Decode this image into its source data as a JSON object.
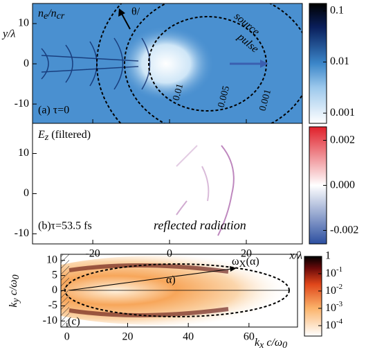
{
  "figure": {
    "x_axis": {
      "label": "x/λ",
      "lim": [
        -35.7,
        34.6
      ],
      "ticks": [
        -20,
        0,
        20
      ]
    },
    "panel_a": {
      "tag": "(a) τ=0",
      "quantity": [
        "n",
        "e",
        "/n",
        "cr"
      ],
      "ylabel": "y/λ",
      "ylim": [
        -14.8,
        15
      ],
      "yticks": [
        10,
        0,
        -10
      ],
      "contours": [
        "0.01",
        "0.005",
        "0.001"
      ],
      "annotations": [
        "source",
        "pulse",
        "θ/"
      ],
      "colorbar": {
        "lim": [
          0.00063,
          0.14
        ],
        "log": true,
        "ticks": [
          0.1,
          0.01,
          0.001
        ]
      }
    },
    "panel_b": {
      "tag": "(b)τ=53.5 fs",
      "quantity": [
        "E",
        "z",
        " (filtered)"
      ],
      "annotation": "reflected radiation",
      "ylim": [
        -12.5,
        17.5
      ],
      "yticks": [
        10,
        0,
        -10
      ],
      "colorbar": {
        "lim": [
          -0.0026,
          0.0026
        ],
        "ticks": [
          {
            "value": 0.002,
            "label": "0.002"
          },
          {
            "value": 0,
            "label": "0.000"
          },
          {
            "value": -0.002,
            "label": "-0.002"
          }
        ]
      }
    },
    "panel_c": {
      "tag": "(c)",
      "xlabel": [
        "k",
        "x",
        " c/ω",
        "0"
      ],
      "ylabel": [
        "k",
        "y",
        " c/ω",
        "0"
      ],
      "xlim": [
        -2,
        76
      ],
      "xticks": [
        0,
        20,
        40,
        60
      ],
      "ylim": [
        -12,
        12
      ],
      "yticks": [
        10,
        5,
        0,
        -5,
        -10
      ],
      "annotations": [
        [
          "ω",
          "X",
          "(α)"
        ],
        "α)"
      ],
      "colorbar": {
        "lim": [
          2.5e-05,
          1
        ],
        "log": true,
        "ticks": [
          1,
          {
            "value": 0.1,
            "label": "10",
            "exponent": "-1"
          },
          {
            "value": 0.01,
            "label": "10",
            "exponent": "-2"
          },
          {
            "value": 0.001,
            "label": "10",
            "exponent": "-3"
          },
          {
            "value": 0.0001,
            "label": "10",
            "exponent": "-4"
          }
        ]
      }
    }
  }
}
